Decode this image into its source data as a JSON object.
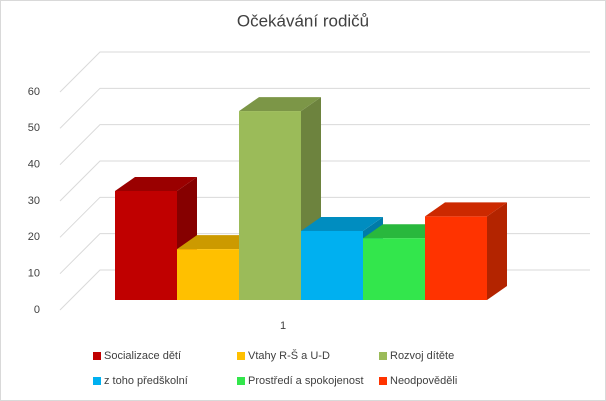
{
  "chart_data": {
    "type": "bar3d",
    "title": "Očekávání rodičů",
    "categories": [
      "1"
    ],
    "series": [
      {
        "name": "Socializace dětí",
        "color": "#c00000",
        "values": [
          30
        ]
      },
      {
        "name": "Vtahy R-Š a U-D",
        "color": "#ffc000",
        "values": [
          14
        ]
      },
      {
        "name": "Rozvoj dítěte",
        "color": "#9bbb59",
        "values": [
          52
        ]
      },
      {
        "name": "z toho předškolní",
        "color": "#00b0f0",
        "values": [
          19
        ]
      },
      {
        "name": "Prostředí a spokojenost",
        "color": "#33e64c",
        "values": [
          17
        ]
      },
      {
        "name": "Neodpověděli",
        "color": "#ff3300",
        "values": [
          23
        ]
      }
    ],
    "ylim": [
      0,
      60
    ],
    "yticks": [
      0,
      10,
      20,
      30,
      40,
      50,
      60
    ],
    "grid": true
  }
}
